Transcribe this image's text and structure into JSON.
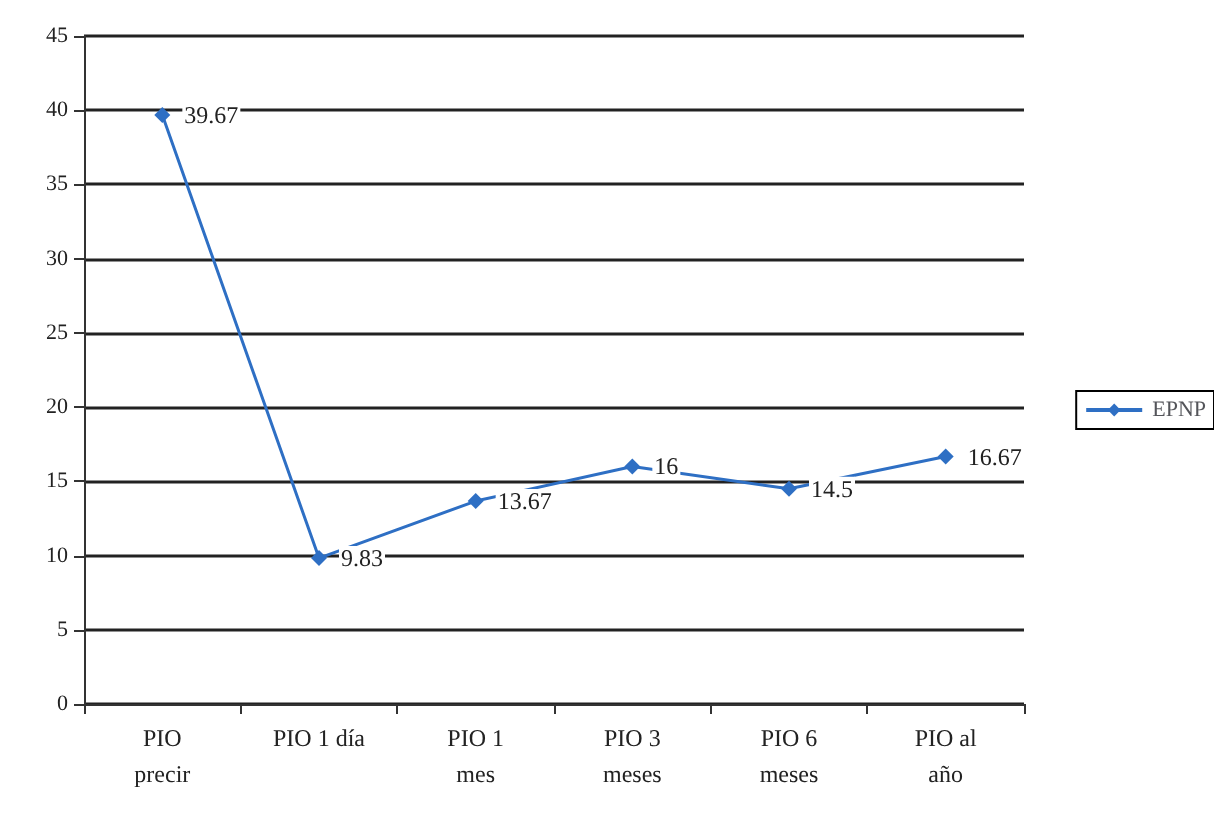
{
  "chart_data": {
    "type": "line",
    "categories": [
      "PIO\nprecir",
      "PIO 1 día",
      "PIO 1\nmes",
      "PIO 3\nmeses",
      "PIO 6\nmeses",
      "PIO al\naño"
    ],
    "series": [
      {
        "name": "EPNP",
        "color": "#2e6fc4",
        "values": [
          39.67,
          9.83,
          13.67,
          16,
          14.5,
          16.67
        ]
      }
    ],
    "ylim": [
      0,
      45
    ],
    "yticks": [
      0,
      5,
      10,
      15,
      20,
      25,
      30,
      35,
      40,
      45
    ],
    "grid": "y",
    "legend": "right",
    "marker": "diamond",
    "data_labels": true
  }
}
